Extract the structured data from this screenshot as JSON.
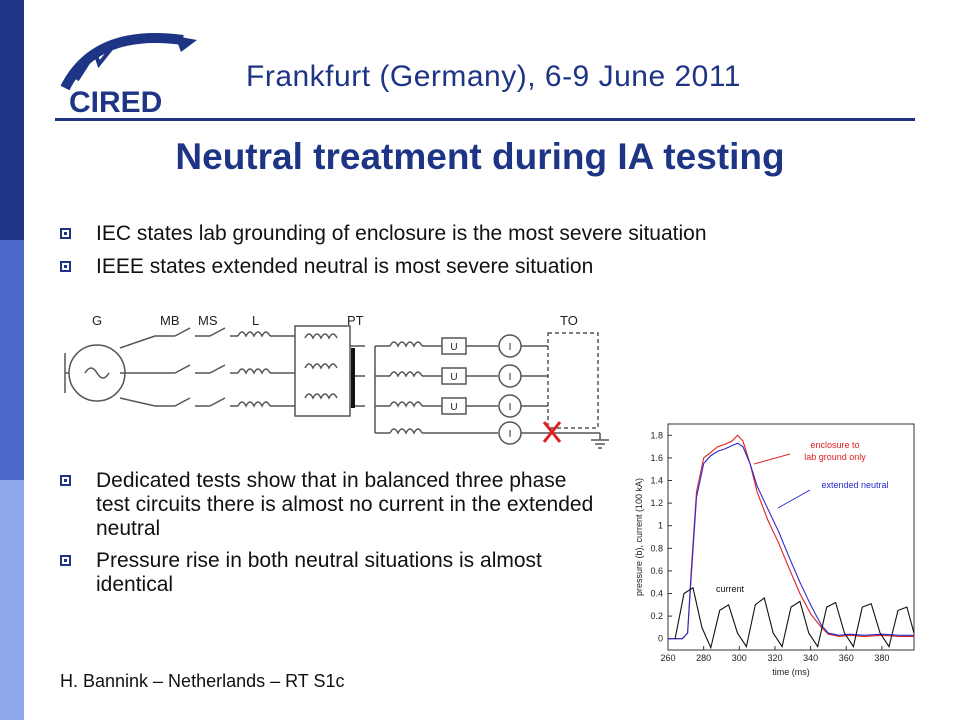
{
  "header": {
    "logo_text": "CIRED",
    "conference": "Frankfurt (Germany), 6-9 June 2011"
  },
  "slide": {
    "title": "Neutral treatment during IA testing",
    "bullets_top": [
      "IEC states lab grounding of enclosure is the most severe situation",
      "IEEE states extended neutral is most severe situation"
    ],
    "bullets_bottom": [
      "Dedicated tests show that in balanced three phase test circuits there is almost no current in the extended neutral",
      "Pressure rise in both neutral situations is almost identical"
    ],
    "footer": "H. Bannink – Netherlands – RT S1c"
  },
  "circuit": {
    "labels": {
      "g": "G",
      "mb": "MB",
      "ms": "MS",
      "l": "L",
      "pt": "PT",
      "to": "TO",
      "u": "U",
      "i": "I"
    },
    "x_mark_color": "#e02020"
  },
  "colors": {
    "accent": "#1e3585",
    "red_series": "#e02020",
    "blue_series": "#2a2ad0"
  },
  "chart_data": {
    "type": "line",
    "xlabel": "time (ms)",
    "ylabel": "pressure (b), current (100 kA)",
    "xlim": [
      260,
      398
    ],
    "ylim": [
      -0.1,
      1.9
    ],
    "xticks": [
      260,
      280,
      300,
      320,
      340,
      360,
      380
    ],
    "yticks": [
      0,
      0.2,
      0.4,
      0.6,
      0.8,
      1,
      1.2,
      1.4,
      1.6,
      1.8
    ],
    "annotations": [
      "enclosure to",
      "lab ground only",
      "extended neutral",
      "current"
    ],
    "series": [
      {
        "color": "#e02020",
        "x": [
          260,
          268,
          271,
          273,
          276,
          280,
          284,
          288,
          292,
          296,
          299,
          302,
          306,
          310,
          316,
          322,
          328,
          334,
          340,
          346,
          350,
          356,
          362,
          370,
          380,
          390,
          398
        ],
        "y": [
          0,
          0,
          0.05,
          0.6,
          1.3,
          1.6,
          1.65,
          1.7,
          1.72,
          1.75,
          1.8,
          1.75,
          1.55,
          1.3,
          1.05,
          0.85,
          0.62,
          0.4,
          0.22,
          0.1,
          0.04,
          0.02,
          0.03,
          0.02,
          0.03,
          0.02,
          0.02
        ]
      },
      {
        "color": "#2a2ad0",
        "x": [
          260,
          268,
          271,
          273,
          276,
          280,
          284,
          288,
          292,
          296,
          299,
          302,
          306,
          310,
          316,
          322,
          328,
          334,
          340,
          346,
          350,
          356,
          362,
          370,
          380,
          390,
          398
        ],
        "y": [
          0,
          0,
          0.05,
          0.55,
          1.25,
          1.55,
          1.62,
          1.66,
          1.68,
          1.71,
          1.73,
          1.7,
          1.55,
          1.35,
          1.15,
          0.95,
          0.72,
          0.5,
          0.3,
          0.12,
          0.05,
          0.03,
          0.04,
          0.03,
          0.04,
          0.03,
          0.03
        ]
      },
      {
        "color": "#111111",
        "name": "current",
        "x": [
          264,
          269,
          274,
          279,
          284,
          289,
          294,
          299,
          304,
          309,
          314,
          319,
          324,
          329,
          334,
          339,
          344,
          349,
          354,
          359,
          364,
          369,
          374,
          379,
          384,
          389,
          394,
          398
        ],
        "y": [
          0,
          0.4,
          0.45,
          0.1,
          -0.08,
          0.25,
          0.3,
          0.05,
          -0.07,
          0.3,
          0.36,
          0.05,
          -0.07,
          0.28,
          0.33,
          0.05,
          -0.07,
          0.28,
          0.32,
          0.05,
          -0.07,
          0.28,
          0.31,
          0.05,
          -0.07,
          0.25,
          0.28,
          0.05
        ]
      }
    ]
  }
}
